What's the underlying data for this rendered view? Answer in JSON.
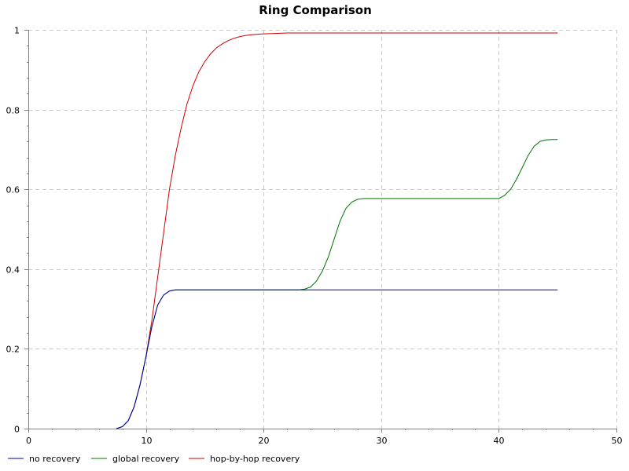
{
  "chart_data": {
    "type": "line",
    "title": "Ring Comparison",
    "xlabel": "",
    "ylabel": "",
    "xlim": [
      0,
      50
    ],
    "ylim": [
      0,
      1
    ],
    "x_ticks": [
      0,
      10,
      20,
      30,
      40,
      50
    ],
    "y_ticks": [
      0,
      0.2,
      0.4,
      0.6,
      0.8,
      1
    ],
    "x_tick_labels": [
      "0",
      "10",
      "20",
      "30",
      "40",
      "50"
    ],
    "y_tick_labels": [
      "0",
      "0.2",
      "0.4",
      "0.6",
      "0.8",
      "1"
    ],
    "grid": true,
    "legend_position": "bottom-left",
    "series": [
      {
        "name": "no recovery",
        "color": "#0000aa",
        "x": [
          7.5,
          8,
          8.5,
          9,
          9.5,
          10,
          10.5,
          11,
          11.5,
          12,
          12.5,
          13,
          15,
          20,
          25,
          30,
          35,
          40,
          45
        ],
        "y": [
          0,
          0.005,
          0.02,
          0.055,
          0.11,
          0.18,
          0.255,
          0.31,
          0.335,
          0.345,
          0.348,
          0.348,
          0.348,
          0.348,
          0.348,
          0.348,
          0.348,
          0.348,
          0.348
        ]
      },
      {
        "name": "global recovery",
        "color": "#007700",
        "x": [
          7.5,
          8,
          8.5,
          9,
          9.5,
          10,
          10.5,
          11,
          11.5,
          12,
          12.5,
          13,
          15,
          20,
          23,
          23.5,
          24,
          24.5,
          25,
          25.5,
          26,
          26.5,
          27,
          27.5,
          28,
          28.5,
          29,
          30,
          35,
          40,
          40.5,
          41,
          41.5,
          42,
          42.5,
          43,
          43.5,
          44,
          44.5,
          45
        ],
        "y": [
          0,
          0.005,
          0.02,
          0.055,
          0.11,
          0.18,
          0.255,
          0.31,
          0.335,
          0.345,
          0.348,
          0.348,
          0.348,
          0.348,
          0.348,
          0.35,
          0.355,
          0.37,
          0.395,
          0.43,
          0.475,
          0.52,
          0.552,
          0.568,
          0.575,
          0.577,
          0.577,
          0.577,
          0.577,
          0.577,
          0.585,
          0.6,
          0.625,
          0.655,
          0.685,
          0.708,
          0.72,
          0.724,
          0.725,
          0.725
        ]
      },
      {
        "name": "hop-by-hop recovery",
        "color": "#cc0000",
        "x": [
          7.5,
          8,
          8.5,
          9,
          9.5,
          10,
          10.5,
          11,
          11.5,
          12,
          12.5,
          13,
          13.5,
          14,
          14.5,
          15,
          15.5,
          16,
          16.5,
          17,
          17.5,
          18,
          18.5,
          19,
          20,
          21,
          22,
          25,
          30,
          35,
          40,
          45
        ],
        "y": [
          0,
          0.005,
          0.02,
          0.055,
          0.11,
          0.18,
          0.27,
          0.38,
          0.49,
          0.6,
          0.685,
          0.755,
          0.815,
          0.86,
          0.895,
          0.92,
          0.94,
          0.955,
          0.965,
          0.973,
          0.979,
          0.983,
          0.986,
          0.988,
          0.99,
          0.991,
          0.992,
          0.992,
          0.992,
          0.992,
          0.992,
          0.992
        ]
      }
    ]
  }
}
